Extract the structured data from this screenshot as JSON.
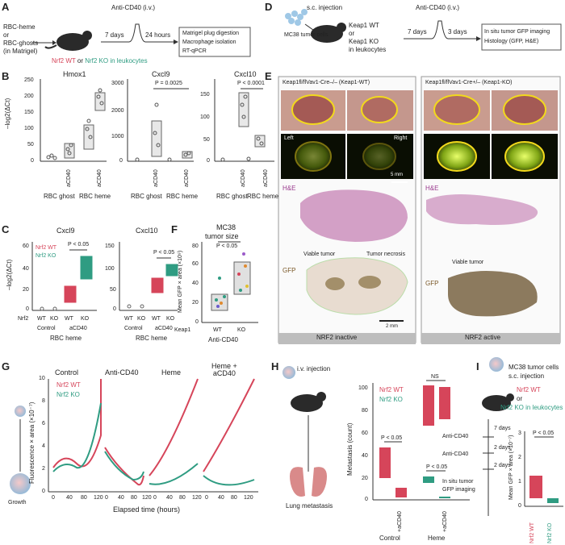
{
  "panel_labels": {
    "A": "A",
    "B": "B",
    "C": "C",
    "D": "D",
    "E": "E",
    "F": "F",
    "G": "G",
    "H": "H",
    "I": "I"
  },
  "colors": {
    "wt": "#d6455a",
    "ko": "#2f9c82",
    "gray": "#888888"
  },
  "A": {
    "left_text": [
      "RBC-heme",
      "or",
      "RBC-ghosts",
      "(in Matrigel)"
    ],
    "treatment": "Anti-CD40 (i.v.)",
    "t1": "7 days",
    "t2": "24 hours",
    "mice_wt": "Nrf2 WT",
    "mice_or": " or ",
    "mice_ko": "Nrf2 KO in leukocytes",
    "steps": [
      "Matrigel plug digestion",
      "Macrophage isolation",
      "RT-qPCR"
    ]
  },
  "B": {
    "ylabel": "–log2(ΔCt)",
    "panels": [
      {
        "title": "Hmox1",
        "yticks": [
          "0",
          "50",
          "100",
          "150",
          "200",
          "250"
        ],
        "pval": ""
      },
      {
        "title": "Cxcl9",
        "yticks": [
          "0",
          "1000",
          "2000",
          "3000"
        ],
        "pval": "P = 0.0025"
      },
      {
        "title": "Cxcl10",
        "yticks": [
          "0",
          "50",
          "100",
          "150"
        ],
        "pval": "P < 0.0001"
      }
    ],
    "xrot": "aCD40",
    "groups": [
      "RBC ghost",
      "RBC heme"
    ]
  },
  "C": {
    "ylabel": "–log2(ΔCt)",
    "panels": [
      {
        "title": "Cxcl9",
        "yticks": [
          "0",
          "20",
          "40",
          "60"
        ],
        "pval": "P < 0.05"
      },
      {
        "title": "Cxcl10",
        "yticks": [
          "0",
          "50",
          "100",
          "150"
        ],
        "pval": "P < 0.05"
      }
    ],
    "legend_wt": "Nrf2 WT",
    "legend_ko": "Nrf2 KO",
    "row_label": "Nrf2",
    "xticks": [
      "WT",
      "KO",
      "WT",
      "KO"
    ],
    "groups": [
      "Control",
      "aCD40"
    ],
    "bottom": "RBC heme"
  },
  "D": {
    "inject": "s.c. injection",
    "cells": "MC38\ntumor cells",
    "genotype": [
      "Keap1 WT",
      "or",
      "Keap1 KO",
      "in leukocytes"
    ],
    "treatment": "Anti-CD40 (i.v.)",
    "t1": "7 days",
    "t2": "3 days",
    "steps": [
      "In situ tumor GFP imaging",
      "Histology (GFP, H&E)"
    ]
  },
  "E": {
    "left_title": "Keap1fl/flVav1-Cre–/– (Keap1-WT)",
    "right_title": "Keap1fl/flVav1-Cre+/– (Keap1-KO)",
    "left": "Left",
    "right": "Right",
    "scale1": "5 mm",
    "scale2": "2 mm",
    "he": "H&E",
    "gfp": "GFP",
    "viable": "Viable tumor",
    "necrosis": "Tumor necrosis",
    "footer_left": "NRF2 inactive",
    "footer_right": "NRF2 active"
  },
  "F": {
    "title": [
      "MC38",
      "tumor size"
    ],
    "pval": "P < 0.05",
    "ylabel": "Mean GFP × area (×10⁹)",
    "yticks": [
      "0",
      "20",
      "40",
      "60",
      "80"
    ],
    "row_label": "Keap1",
    "xticks": [
      "WT",
      "KO"
    ],
    "bottom": "Anti-CD40"
  },
  "G": {
    "conditions": [
      "Control",
      "Anti-CD40",
      "Heme",
      "Heme +\naCD40"
    ],
    "legend_wt": "Nrf2 WT",
    "legend_ko": "Nrf2 KO",
    "ylabel": "Fluorescence × area (×10⁻⁷)",
    "yticks": [
      "0",
      "2",
      "4",
      "6",
      "8",
      "10"
    ],
    "xticks": [
      "0",
      "40",
      "80",
      "120"
    ],
    "xlabel": "Elapsed time (hours)",
    "growth": "Growth"
  },
  "H": {
    "inject": "i.v. injection",
    "lung": "Lung metastasis",
    "legend_wt": "Nrf2 WT",
    "legend_ko": "Nrf2 KO",
    "ylabel": "Metastasis (count)",
    "yticks": [
      "0",
      "20",
      "40",
      "60",
      "80",
      "100"
    ],
    "p1": "P < 0.05",
    "ns": "NS",
    "p2": "P < 0.05",
    "xrot": "+aCD40",
    "groups": [
      "Control",
      "Heme"
    ]
  },
  "I": {
    "text": [
      "MC38 tumor cells",
      "s.c. injection"
    ],
    "wt": "Nrf2 WT",
    "or": "or",
    "ko": "Nrf2 KO in leukocytes",
    "timeline": [
      "7 days",
      "2 days",
      "2 days"
    ],
    "treat": [
      "Anti-CD40",
      "Anti-CD40"
    ],
    "imaging": [
      "In situ tumor",
      "GFP imaging"
    ],
    "ylabel": "Mean GFP × area (×10⁻⁷)",
    "yticks": [
      "0",
      "1",
      "2",
      "3"
    ],
    "pval": "P < 0.05",
    "xticks": [
      "Nrf2 WT",
      "Nrf2 KO"
    ]
  }
}
